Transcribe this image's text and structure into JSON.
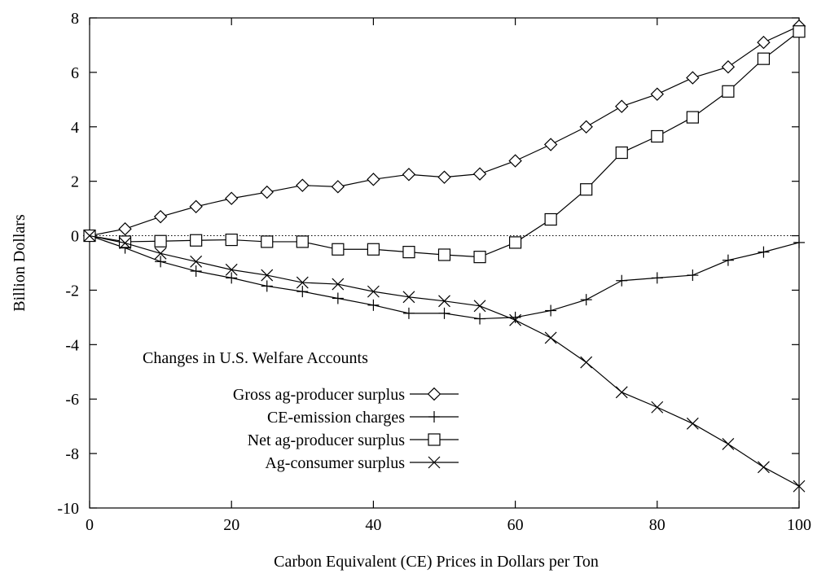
{
  "chart_data": {
    "type": "line",
    "xlabel": "Carbon Equivalent (CE) Prices in Dollars per Ton",
    "ylabel": "Billion Dollars",
    "xlim": [
      0,
      100
    ],
    "ylim": [
      -10,
      8
    ],
    "xticks": [
      0,
      20,
      40,
      60,
      80,
      100
    ],
    "yticks": [
      -10,
      -8,
      -6,
      -4,
      -2,
      0,
      2,
      4,
      6,
      8
    ],
    "x": [
      0,
      5,
      10,
      15,
      20,
      25,
      30,
      35,
      40,
      45,
      50,
      55,
      60,
      65,
      70,
      75,
      80,
      85,
      90,
      95,
      100
    ],
    "zero_line": true,
    "legend": {
      "title": "Changes in U.S. Welfare Accounts",
      "placement": "lower-left"
    },
    "series": [
      {
        "name": "Gross ag-producer surplus",
        "marker": "diamond",
        "values": [
          0,
          0.25,
          0.7,
          1.07,
          1.37,
          1.6,
          1.85,
          1.8,
          2.07,
          2.25,
          2.15,
          2.27,
          2.75,
          3.35,
          4.0,
          4.75,
          5.2,
          5.8,
          6.2,
          7.1,
          7.7
        ]
      },
      {
        "name": "CE-emission charges",
        "marker": "plus",
        "values": [
          0,
          -0.45,
          -0.95,
          -1.3,
          -1.55,
          -1.85,
          -2.05,
          -2.3,
          -2.55,
          -2.85,
          -2.85,
          -3.05,
          -3.0,
          -2.75,
          -2.35,
          -1.65,
          -1.55,
          -1.45,
          -0.9,
          -0.6,
          -0.25
        ]
      },
      {
        "name": "Net ag-producer surplus",
        "marker": "square",
        "values": [
          0,
          -0.22,
          -0.2,
          -0.17,
          -0.15,
          -0.22,
          -0.22,
          -0.5,
          -0.5,
          -0.6,
          -0.7,
          -0.78,
          -0.25,
          0.6,
          1.7,
          3.05,
          3.65,
          4.35,
          5.3,
          6.5,
          7.5
        ]
      },
      {
        "name": "Ag-consumer surplus",
        "marker": "x",
        "values": [
          0,
          -0.27,
          -0.65,
          -0.95,
          -1.25,
          -1.45,
          -1.72,
          -1.78,
          -2.05,
          -2.25,
          -2.4,
          -2.58,
          -3.1,
          -3.75,
          -4.65,
          -5.75,
          -6.3,
          -6.9,
          -7.65,
          -8.5,
          -9.2
        ]
      }
    ]
  }
}
